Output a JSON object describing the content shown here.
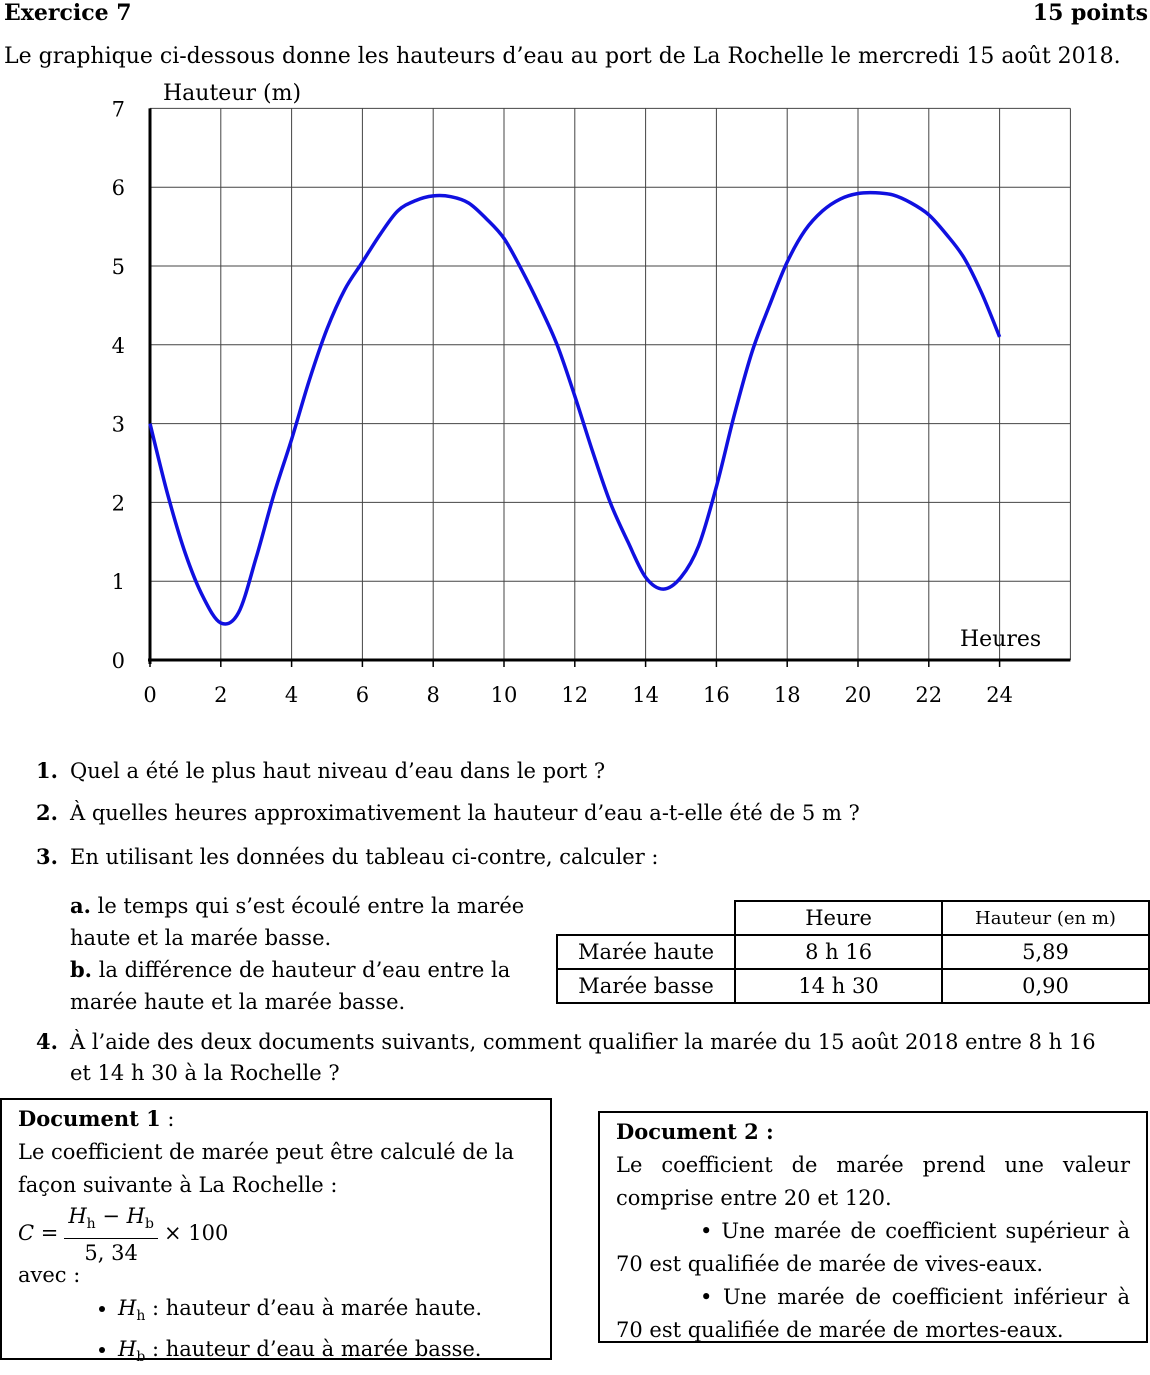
{
  "header": {
    "title": "Exercice 7",
    "points": "15 points"
  },
  "intro": "Le graphique ci-dessous donne les hauteurs d’eau au port de La Rochelle le mercredi 15 août 2018.",
  "chart_data": {
    "type": "line",
    "ylabel": "Hauteur (m)",
    "xlabel": "Heures",
    "xlim": [
      0,
      26
    ],
    "ylim": [
      0,
      7
    ],
    "x_ticks": [
      0,
      2,
      4,
      6,
      8,
      10,
      12,
      14,
      16,
      18,
      20,
      22,
      24
    ],
    "y_ticks": [
      0,
      1,
      2,
      3,
      4,
      5,
      6,
      7
    ],
    "grid": true,
    "series": [
      {
        "color": "#1010e0",
        "x": [
          0,
          0.5,
          1,
          1.5,
          2,
          2.5,
          3,
          3.5,
          4,
          4.5,
          5,
          5.5,
          6,
          6.5,
          7,
          7.5,
          8,
          8.5,
          9,
          9.5,
          10,
          10.5,
          11,
          11.5,
          12,
          12.5,
          13,
          13.5,
          14,
          14.5,
          15,
          15.5,
          16,
          16.5,
          17,
          17.5,
          18,
          18.5,
          19,
          19.5,
          20,
          20.5,
          21,
          21.5,
          22,
          22.5,
          23,
          23.5,
          24
        ],
        "y": [
          3,
          2.1,
          1.35,
          0.8,
          0.47,
          0.6,
          1.3,
          2.1,
          2.8,
          3.55,
          4.2,
          4.7,
          5.05,
          5.4,
          5.7,
          5.83,
          5.89,
          5.88,
          5.8,
          5.6,
          5.35,
          4.95,
          4.5,
          4.0,
          3.35,
          2.65,
          2.0,
          1.5,
          1.05,
          0.9,
          1.05,
          1.45,
          2.2,
          3.1,
          3.9,
          4.5,
          5.05,
          5.45,
          5.7,
          5.85,
          5.92,
          5.93,
          5.9,
          5.8,
          5.65,
          5.4,
          5.1,
          4.65,
          4.1
        ]
      }
    ]
  },
  "questions": [
    {
      "num": "1.",
      "text": "Quel a été le plus haut niveau d’eau dans le port ?"
    },
    {
      "num": "2.",
      "text": "À quelles heures approximativement la hauteur d’eau a-t-elle été de 5 m ?"
    },
    {
      "num": "3.",
      "text": "En utilisant les données du tableau ci-contre, calculer :"
    },
    {
      "num": "4.",
      "text": "À l’aide des deux documents suivants, comment qualifier la marée du 15 août 2018 entre 8 h 16",
      "text2": "et 14 h 30 à la Rochelle ?"
    }
  ],
  "sub_a": {
    "label": "a.",
    "text": "le temps qui s’est écoulé entre la marée haute et la marée basse."
  },
  "sub_b": {
    "label": "b.",
    "text": "la différence de hauteur d’eau entre la marée haute et la marée basse."
  },
  "table": {
    "headers": [
      "Heure",
      "Hauteur (en m)"
    ],
    "rows": [
      {
        "label": "Marée haute",
        "heure": "8 h 16",
        "hauteur": "5,89"
      },
      {
        "label": "Marée basse",
        "heure": "14 h 30",
        "hauteur": "0,90"
      }
    ]
  },
  "doc1": {
    "title": "Document 1",
    "title_suffix": " :",
    "line1": "Le coefficient de marée peut être calculé de la façon suivante à La Rochelle :",
    "formula_lhs": "C =",
    "formula_num": "H",
    "sub_h": "h",
    "minus": " − ",
    "sub_b": "b",
    "formula_den": "5, 34",
    "formula_mult": "× 100",
    "avec": "avec :",
    "bullet1": " : hauteur d’eau à marée haute.",
    "bullet2": " : hauteur d’eau à marée basse."
  },
  "doc2": {
    "title": "Document 2 :",
    "line1": "Le coefficient de marée prend une valeur comprise entre 20 et 120.",
    "bullet1": "Une marée de coefficient supérieur à 70 est qualifiée de marée de vives-eaux.",
    "bullet2": "Une marée de coefficient inférieur à 70 est qualifiée de marée de mortes-eaux."
  }
}
